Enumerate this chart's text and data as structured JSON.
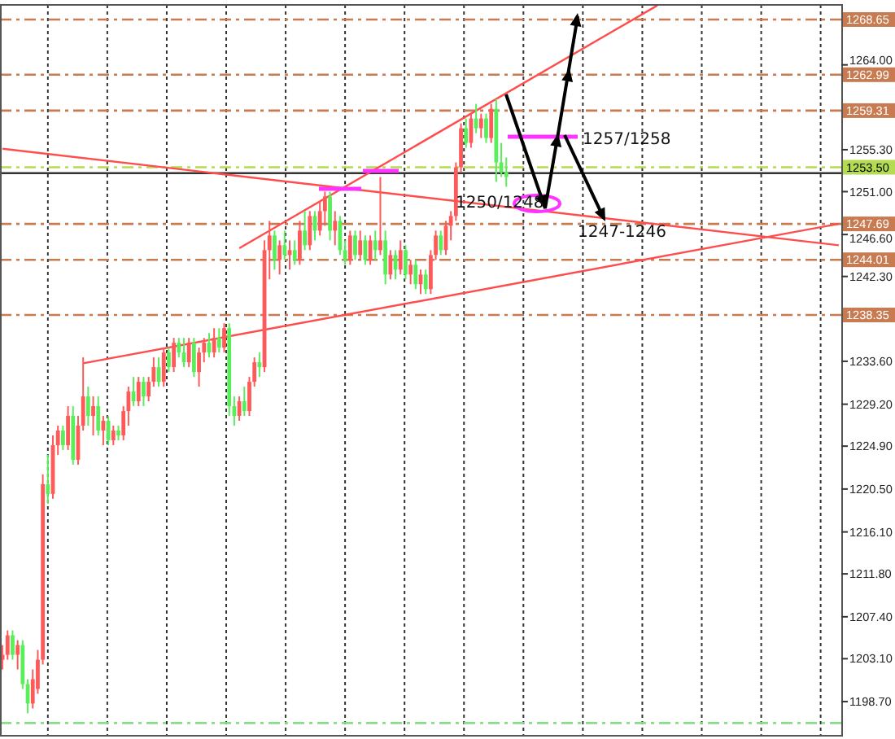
{
  "chart_data": {
    "type": "candlestick",
    "categories": [
      null,
      null,
      null,
      null,
      null,
      null,
      null,
      null,
      null,
      null,
      null,
      null,
      null,
      null,
      null,
      null,
      null,
      null,
      null,
      null,
      null,
      null,
      null,
      null,
      null,
      null,
      null,
      null,
      null,
      null,
      null,
      null,
      null,
      null,
      null,
      null,
      null,
      null,
      null,
      null,
      null,
      null,
      null,
      null,
      null,
      null,
      null,
      null,
      null,
      null,
      null,
      null,
      null,
      null,
      null,
      null,
      null,
      null,
      null,
      null,
      null,
      null,
      null,
      null,
      null,
      null,
      null,
      null,
      null,
      null,
      null,
      null,
      null,
      null,
      null,
      null,
      null,
      null,
      null,
      null,
      null,
      null,
      null,
      null,
      null,
      null,
      null,
      null,
      null,
      null,
      null,
      null,
      null,
      null,
      null,
      null,
      null,
      null,
      null,
      null,
      null,
      null,
      null,
      null,
      null,
      null,
      null,
      null,
      null,
      null,
      null,
      null,
      null,
      null,
      null,
      null,
      null,
      null,
      null,
      null,
      null,
      null,
      null,
      null,
      null,
      null,
      null,
      null,
      null,
      null,
      null,
      null,
      null,
      null,
      null,
      null,
      null,
      null,
      null,
      null,
      null,
      null,
      null,
      null,
      null,
      null,
      null,
      null,
      null,
      null,
      null,
      null,
      null,
      null,
      null,
      null,
      null,
      null,
      null,
      null,
      null,
      null,
      null,
      null,
      null,
      null,
      null
    ],
    "ohlc": [
      [
        1203,
        1204.5,
        1202,
        1203.5
      ],
      [
        1203.5,
        1206,
        1203,
        1205.5
      ],
      [
        1205.5,
        1206,
        1203,
        1203.5
      ],
      [
        1203.5,
        1205,
        1202,
        1204.5
      ],
      [
        1204.5,
        1205,
        1200,
        1200.5
      ],
      [
        1200.5,
        1201,
        1197.5,
        1198.5
      ],
      [
        1198.5,
        1202,
        1198,
        1201
      ],
      [
        1200,
        1204,
        1199.5,
        1203
      ],
      [
        1203,
        1222,
        1202.5,
        1221
      ],
      [
        1221,
        1224,
        1219,
        1220
      ],
      [
        1220,
        1226,
        1219.5,
        1225
      ],
      [
        1225,
        1227,
        1224,
        1226.5
      ],
      [
        1226.5,
        1227,
        1224.5,
        1225
      ],
      [
        1225,
        1229,
        1224.5,
        1228
      ],
      [
        1228,
        1229,
        1223,
        1223.5
      ],
      [
        1223.5,
        1228,
        1223,
        1227
      ],
      [
        1227,
        1234,
        1226.5,
        1230
      ],
      [
        1230,
        1231,
        1227,
        1228
      ],
      [
        1228,
        1230,
        1226,
        1229
      ],
      [
        1229,
        1230,
        1226,
        1226.5
      ],
      [
        1226.5,
        1228,
        1225,
        1227.5
      ],
      [
        1227.5,
        1228,
        1225,
        1225.5
      ],
      [
        1225.5,
        1227,
        1225,
        1226.5
      ],
      [
        1226.5,
        1227,
        1225.5,
        1226
      ],
      [
        1226,
        1229,
        1225.5,
        1228.5
      ],
      [
        1228.5,
        1231,
        1227,
        1230.5
      ],
      [
        1230.5,
        1232,
        1229,
        1229.5
      ],
      [
        1229.5,
        1232,
        1229,
        1231.5
      ],
      [
        1231.5,
        1232,
        1229,
        1230
      ],
      [
        1230,
        1232,
        1229.5,
        1231.5
      ],
      [
        1231.5,
        1234,
        1231,
        1233
      ],
      [
        1233,
        1234,
        1231,
        1231.5
      ],
      [
        1231.5,
        1235,
        1231,
        1234.5
      ],
      [
        1234.5,
        1235,
        1232.5,
        1233
      ],
      [
        1233,
        1236,
        1232.5,
        1235.5
      ],
      [
        1235.5,
        1236,
        1234,
        1234.5
      ],
      [
        1234.5,
        1236,
        1233,
        1233.5
      ],
      [
        1233.5,
        1236,
        1233,
        1235.5
      ],
      [
        1235.5,
        1236,
        1232,
        1232.5
      ],
      [
        1232.5,
        1235,
        1231,
        1234.5
      ],
      [
        1234.5,
        1236,
        1233.5,
        1235.5
      ],
      [
        1235.5,
        1236.5,
        1234,
        1234.5
      ],
      [
        1234.5,
        1237,
        1234,
        1236
      ],
      [
        1236,
        1237,
        1234.5,
        1235
      ],
      [
        1235,
        1237.5,
        1234.5,
        1237
      ],
      [
        1237,
        1237.5,
        1228,
        1229
      ],
      [
        1229,
        1230,
        1227,
        1228
      ],
      [
        1228,
        1230,
        1227.5,
        1229.5
      ],
      [
        1229.5,
        1231,
        1228,
        1228.5
      ],
      [
        1228.5,
        1232,
        1228,
        1231.5
      ],
      [
        1231.5,
        1234,
        1231,
        1233.5
      ],
      [
        1233.5,
        1234.5,
        1232,
        1233
      ],
      [
        1233,
        1246,
        1232.5,
        1245
      ],
      [
        1245,
        1248,
        1242,
        1246.5
      ],
      [
        1246.5,
        1247,
        1243,
        1244
      ],
      [
        1244,
        1246,
        1242.5,
        1245.5
      ],
      [
        1245.5,
        1247,
        1244,
        1244.5
      ],
      [
        1244.5,
        1246,
        1243,
        1245
      ],
      [
        1245,
        1246,
        1243.5,
        1244
      ],
      [
        1244,
        1248,
        1243.5,
        1247
      ],
      [
        1247,
        1249,
        1245,
        1245.5
      ],
      [
        1245.5,
        1249,
        1245,
        1248.5
      ],
      [
        1248.5,
        1249,
        1246,
        1247
      ],
      [
        1247,
        1250,
        1246.5,
        1249
      ],
      [
        1249,
        1251,
        1247.5,
        1250.5
      ],
      [
        1250.5,
        1251,
        1246,
        1247
      ],
      [
        1247,
        1249,
        1245.5,
        1248
      ],
      [
        1248,
        1248.5,
        1244.5,
        1245
      ],
      [
        1245,
        1246,
        1243.5,
        1244
      ],
      [
        1244,
        1247,
        1243.5,
        1246.5
      ],
      [
        1246.5,
        1247,
        1244,
        1244.5
      ],
      [
        1244.5,
        1247,
        1244,
        1246
      ],
      [
        1246,
        1246.5,
        1243.5,
        1244
      ],
      [
        1244,
        1246.5,
        1243.5,
        1246
      ],
      [
        1246,
        1247,
        1244,
        1245
      ],
      [
        1245,
        1252.5,
        1244.5,
        1246
      ],
      [
        1246,
        1247,
        1241.5,
        1242.5
      ],
      [
        1242.5,
        1245,
        1242,
        1244.5
      ],
      [
        1244.5,
        1245,
        1242,
        1243
      ],
      [
        1243,
        1246,
        1242.5,
        1245
      ],
      [
        1245,
        1245.5,
        1242,
        1242.5
      ],
      [
        1242.5,
        1244,
        1241.5,
        1243.5
      ],
      [
        1243.5,
        1244,
        1241,
        1241.5
      ],
      [
        1241.5,
        1243,
        1240.5,
        1242.5
      ],
      [
        1242.5,
        1243,
        1240.5,
        1241
      ],
      [
        1241,
        1245,
        1240.5,
        1244.5
      ],
      [
        1244.5,
        1247,
        1244,
        1246.5
      ],
      [
        1246.5,
        1247,
        1244.5,
        1245
      ],
      [
        1245,
        1248,
        1244.5,
        1247.5
      ],
      [
        1247.5,
        1249,
        1246,
        1248.5
      ],
      [
        1248.5,
        1254,
        1248,
        1253.5
      ],
      [
        1253.5,
        1258,
        1253,
        1257.5
      ],
      [
        1257.5,
        1258.5,
        1255.5,
        1256
      ],
      [
        1256,
        1259,
        1255.5,
        1258.5
      ],
      [
        1258.5,
        1260,
        1257,
        1257.5
      ],
      [
        1257.5,
        1259,
        1256.5,
        1258.5
      ],
      [
        1258.5,
        1259,
        1256,
        1256.5
      ],
      [
        1256.5,
        1260,
        1256,
        1259.5
      ],
      [
        1259.5,
        1260.5,
        1252,
        1254
      ],
      [
        1254,
        1256,
        1252.5,
        1253
      ],
      [
        1253,
        1254.5,
        1251.5,
        1252.5
      ],
      null,
      null,
      null,
      null,
      null,
      null,
      null,
      null,
      null,
      null,
      null,
      null,
      null,
      null,
      null,
      null,
      null,
      null,
      null,
      null,
      null,
      null,
      null,
      null,
      null,
      null,
      null,
      null,
      null,
      null,
      null,
      null,
      null,
      null,
      null,
      null,
      null,
      null,
      null,
      null,
      null,
      null,
      null,
      null,
      null,
      null,
      null,
      null,
      null,
      null,
      null,
      null,
      null,
      null,
      null,
      null,
      null,
      null,
      null,
      null,
      null,
      null,
      null,
      null,
      null,
      null
    ],
    "colors": [
      "#ff5a5a",
      "#ff5a5a",
      "#5aee5a",
      "#ff5a5a",
      "#5aee5a",
      "#5aee5a",
      "#ff5a5a",
      "#ff5a5a",
      "#ff5a5a",
      "#5aee5a",
      "#ff5a5a",
      "#ff5a5a",
      "#5aee5a",
      "#ff5a5a",
      "#5aee5a",
      "#ff5a5a",
      "#ff5a5a",
      "#5aee5a",
      "#ff5a5a",
      "#5aee5a",
      "#ff5a5a",
      "#5aee5a",
      "#ff5a5a",
      "#5aee5a",
      "#ff5a5a",
      "#ff5a5a",
      "#5aee5a",
      "#ff5a5a",
      "#5aee5a",
      "#ff5a5a",
      "#ff5a5a",
      "#5aee5a",
      "#ff5a5a",
      "#5aee5a",
      "#ff5a5a",
      "#5aee5a",
      "#5aee5a",
      "#ff5a5a",
      "#5aee5a",
      "#ff5a5a",
      "#ff5a5a",
      "#5aee5a",
      "#ff5a5a",
      "#5aee5a",
      "#ff5a5a",
      "#5aee5a",
      "#5aee5a",
      "#ff5a5a",
      "#5aee5a",
      "#ff5a5a",
      "#ff5a5a",
      "#5aee5a",
      "#ff5a5a",
      "#ff5a5a",
      "#5aee5a",
      "#ff5a5a",
      "#5aee5a",
      "#ff5a5a",
      "#5aee5a",
      "#ff5a5a",
      "#5aee5a",
      "#ff5a5a",
      "#5aee5a",
      "#ff5a5a",
      "#ff5a5a",
      "#5aee5a",
      "#ff5a5a",
      "#5aee5a",
      "#5aee5a",
      "#ff5a5a",
      "#5aee5a",
      "#ff5a5a",
      "#5aee5a",
      "#ff5a5a",
      "#5aee5a",
      "#ff5a5a",
      "#5aee5a",
      "#ff5a5a",
      "#5aee5a",
      "#ff5a5a",
      "#5aee5a",
      "#ff5a5a",
      "#5aee5a",
      "#ff5a5a",
      "#5aee5a",
      "#ff5a5a",
      "#ff5a5a",
      "#5aee5a",
      "#ff5a5a",
      "#ff5a5a",
      "#ff5a5a",
      "#ff5a5a",
      "#5aee5a",
      "#ff5a5a",
      "#5aee5a",
      "#ff5a5a",
      "#5aee5a",
      "#ff5a5a",
      "#5aee5a",
      "#5aee5a",
      "#5aee5a",
      null,
      null,
      null,
      null,
      null,
      null,
      null,
      null,
      null,
      null,
      null,
      null,
      null,
      null,
      null,
      null,
      null,
      null,
      null,
      null,
      null,
      null,
      null,
      null,
      null,
      null,
      null,
      null,
      null,
      null,
      null,
      null,
      null,
      null,
      null,
      null,
      null,
      null,
      null,
      null,
      null,
      null,
      null,
      null,
      null,
      null,
      null,
      null,
      null,
      null,
      null,
      null,
      null,
      null,
      null,
      null,
      null,
      null,
      null,
      null,
      null,
      null,
      null,
      null,
      null,
      null
    ],
    "series": [
      {
        "type": "line",
        "color": "#ff4d4d",
        "values": [
          null,
          null,
          null,
          null,
          null,
          null,
          null,
          null,
          null,
          null,
          null,
          null,
          null,
          null,
          null,
          null,
          null,
          null,
          null,
          null,
          null,
          null,
          null,
          null,
          null,
          null,
          null,
          null,
          null,
          null,
          null,
          null,
          null,
          null,
          null,
          null,
          null,
          null,
          null,
          null,
          null,
          null,
          null,
          null,
          null,
          null,
          null,
          1245.2,
          null,
          null,
          null,
          null,
          null,
          null,
          null,
          null,
          null,
          null,
          null,
          null,
          null,
          null,
          null,
          null,
          null,
          null,
          null,
          null,
          null,
          null,
          null,
          null,
          null,
          null,
          null,
          null,
          null,
          null,
          null,
          null,
          null,
          null,
          null,
          null,
          null,
          null,
          null,
          null,
          null,
          null,
          null,
          null,
          null,
          null,
          null,
          null,
          null,
          null,
          null,
          null,
          null,
          null,
          null,
          null,
          null,
          null,
          null,
          null,
          null,
          null,
          null,
          null,
          null,
          null,
          null,
          null,
          null,
          null,
          null,
          null,
          null,
          null,
          null,
          null,
          null,
          null,
          null,
          null,
          null,
          null,
          1270.1,
          null,
          null,
          null,
          null,
          null,
          null,
          null,
          null,
          null,
          null,
          null,
          null,
          null,
          null,
          null,
          null,
          null,
          null,
          null,
          null,
          null,
          null,
          null,
          null,
          null,
          null,
          null,
          null,
          null,
          null,
          null,
          null,
          null,
          null,
          null,
          null
        ]
      },
      {
        "type": "line",
        "color": "#ff4d4d",
        "values": [
          1255.4,
          null,
          null,
          null,
          null,
          null,
          null,
          null,
          null,
          null,
          null,
          null,
          null,
          null,
          null,
          null,
          null,
          null,
          null,
          null,
          null,
          null,
          null,
          null,
          null,
          null,
          null,
          null,
          null,
          null,
          null,
          null,
          null,
          null,
          null,
          null,
          null,
          null,
          null,
          null,
          null,
          null,
          null,
          null,
          null,
          null,
          null,
          null,
          null,
          null,
          null,
          null,
          null,
          null,
          null,
          null,
          null,
          null,
          null,
          null,
          null,
          null,
          null,
          null,
          null,
          null,
          null,
          null,
          null,
          null,
          null,
          null,
          null,
          null,
          null,
          null,
          null,
          null,
          null,
          null,
          null,
          null,
          null,
          null,
          null,
          null,
          null,
          null,
          null,
          null,
          null,
          null,
          null,
          null,
          null,
          null,
          null,
          null,
          null,
          null,
          null,
          null,
          null,
          null,
          null,
          null,
          null,
          null,
          null,
          null,
          null,
          null,
          null,
          null,
          null,
          null,
          null,
          null,
          null,
          null,
          null,
          null,
          null,
          null,
          null,
          null,
          null,
          null,
          null,
          null,
          null,
          null,
          null,
          null,
          null,
          null,
          null,
          null,
          null,
          null,
          null,
          null,
          null,
          null,
          null,
          null,
          null,
          null,
          null,
          null,
          null,
          null,
          null,
          null,
          null,
          null,
          null,
          null,
          null,
          null,
          null,
          null,
          null,
          null,
          null,
          null,
          1245.5
        ]
      },
      {
        "type": "line",
        "color": "#ff4d4d",
        "values": [
          null,
          null,
          null,
          null,
          null,
          null,
          null,
          null,
          null,
          null,
          null,
          null,
          null,
          null,
          null,
          null,
          1233.4,
          null,
          null,
          null,
          null,
          null,
          null,
          null,
          null,
          null,
          null,
          null,
          null,
          null,
          null,
          null,
          null,
          null,
          null,
          null,
          null,
          null,
          null,
          null,
          null,
          null,
          null,
          null,
          null,
          null,
          null,
          null,
          null,
          null,
          null,
          null,
          null,
          null,
          null,
          null,
          null,
          null,
          null,
          null,
          null,
          null,
          null,
          null,
          null,
          null,
          null,
          null,
          null,
          null,
          null,
          null,
          null,
          null,
          null,
          null,
          null,
          null,
          null,
          null,
          null,
          null,
          null,
          null,
          null,
          null,
          null,
          null,
          null,
          null,
          null,
          null,
          null,
          null,
          null,
          null,
          null,
          null,
          null,
          null,
          null,
          null,
          null,
          null,
          null,
          null,
          null,
          null,
          null,
          null,
          null,
          null,
          null,
          null,
          null,
          null,
          null,
          null,
          null,
          null,
          null,
          null,
          null,
          null,
          null,
          null,
          null,
          null,
          null,
          null,
          null,
          null,
          null,
          null,
          null,
          null,
          null,
          null,
          null,
          null,
          null,
          null,
          null,
          null,
          null,
          null,
          null,
          null,
          null,
          null,
          null,
          null,
          null,
          null,
          null,
          null,
          null,
          null,
          null,
          null,
          null,
          null,
          null,
          null,
          null,
          null,
          1247.7
        ]
      }
    ],
    "ylim": [
      1195.2,
      1270.15
    ],
    "yticks": [
      {
        "value": 1198.7,
        "label": "1198.70"
      },
      {
        "value": 1203.1,
        "label": "1203.10"
      },
      {
        "value": 1207.4,
        "label": "1207.40"
      },
      {
        "value": 1211.8,
        "label": "1211.80"
      },
      {
        "value": 1216.1,
        "label": "1216.10"
      },
      {
        "value": 1220.5,
        "label": "1220.50"
      },
      {
        "value": 1224.9,
        "label": "1224.90"
      },
      {
        "value": 1229.2,
        "label": "1229.20"
      },
      {
        "value": 1233.6,
        "label": "1233.60"
      },
      {
        "value": 1242.3,
        "label": "1242.30"
      },
      {
        "value": 1246.6,
        "label": "1246.60"
      },
      {
        "value": 1251,
        "label": "1251.00"
      },
      {
        "value": 1255.3,
        "label": "1255.30"
      },
      {
        "value": 1264,
        "label": "1264.00"
      }
    ],
    "grid": "x",
    "ref_lines": [
      {
        "axis": "y",
        "value": 1268.65,
        "label": "1268.65",
        "color": "#c87a50",
        "line_style": "dashed"
      },
      {
        "axis": "y",
        "value": 1262.99,
        "label": "1262.99",
        "color": "#c87a50",
        "line_style": "dashed"
      },
      {
        "axis": "y",
        "value": 1259.31,
        "label": "1259.31",
        "color": "#c87a50",
        "line_style": "dashed"
      },
      {
        "axis": "y",
        "value": 1253.5,
        "label": "1253.50",
        "color": "#b4dc50",
        "line_style": "dashed"
      },
      {
        "axis": "y",
        "value": 1252.9,
        "color": "#333333",
        "line_style": "solid"
      },
      {
        "axis": "y",
        "value": 1247.69,
        "label": "1247.69",
        "color": "#c87a50",
        "line_style": "dashed"
      },
      {
        "axis": "y",
        "value": 1244.01,
        "label": "1244.01",
        "color": "#c87a50",
        "line_style": "dashed"
      },
      {
        "axis": "y",
        "value": 1238.35,
        "label": "1238.35",
        "color": "#c87a50",
        "line_style": "dashed"
      },
      {
        "axis": "y",
        "value": 1196.5,
        "color": "#88dd88",
        "line_style": "dashed"
      }
    ],
    "annotations": [
      "1250/1248",
      "1257/1258",
      "1247-1246"
    ]
  }
}
